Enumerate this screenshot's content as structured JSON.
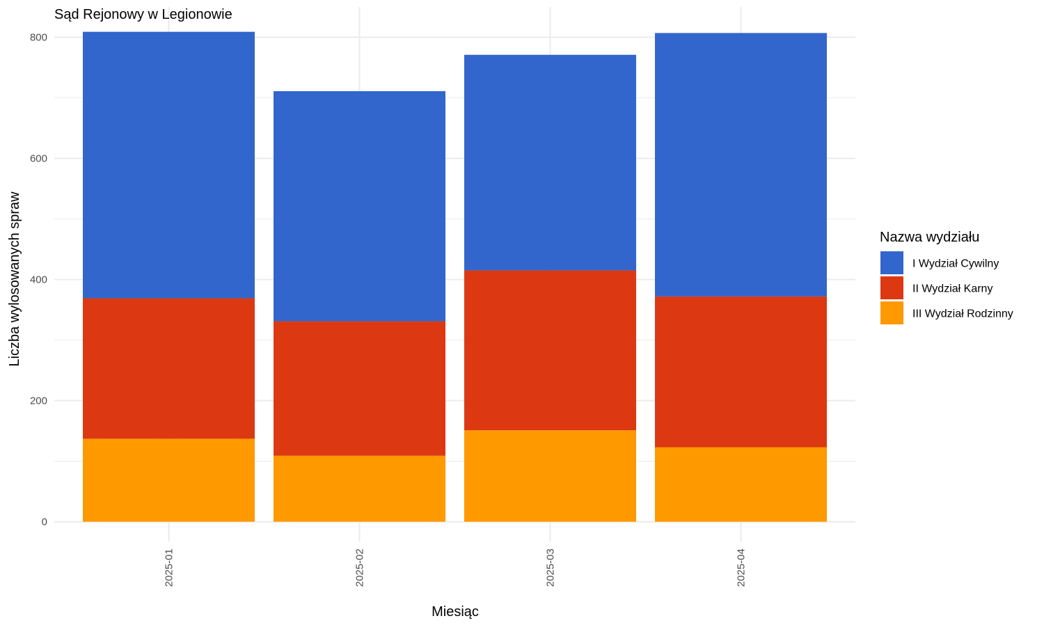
{
  "chart_data": {
    "type": "bar",
    "stacked": true,
    "title": "Sąd Rejonowy w Legionowie",
    "xlabel": "Miesiąc",
    "ylabel": "Liczba wylosowanych spraw",
    "categories": [
      "2025-01",
      "2025-02",
      "2025-03",
      "2025-04"
    ],
    "ylim": [
      0,
      830
    ],
    "y_ticks": [
      0,
      200,
      400,
      600,
      800
    ],
    "grid": true,
    "legend": {
      "title": "Nazwa wydziału",
      "placement": "right"
    },
    "series": [
      {
        "name": "I Wydział Cywilny",
        "color": "#3366cc",
        "values": [
          440,
          380,
          356,
          435
        ]
      },
      {
        "name": "II Wydział Karny",
        "color": "#dc3912",
        "values": [
          232,
          222,
          264,
          249
        ]
      },
      {
        "name": "III Wydział Rodzinny",
        "color": "#ff9900",
        "values": [
          137,
          109,
          151,
          123
        ]
      }
    ],
    "stack_order_bottom_to_top": [
      "III Wydział Rodzinny",
      "II Wydział Karny",
      "I Wydział Cywilny"
    ]
  }
}
